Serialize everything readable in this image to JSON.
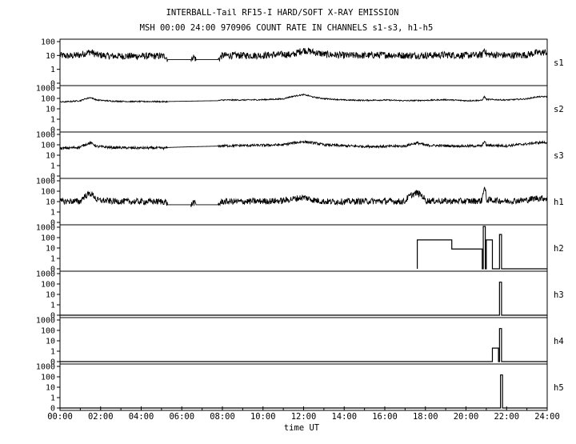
{
  "title": "INTERBALL-Tail RF15-I HARD/SOFT X-RAY EMISSION",
  "subtitle": "MSH 00:00 24:00 970906  COUNT RATE IN CHANNELS s1-s3, h1-h5",
  "xlabel": "time UT",
  "x_ticks": [
    "00:00",
    "02:00",
    "04:00",
    "06:00",
    "08:00",
    "10:00",
    "12:00",
    "14:00",
    "16:00",
    "18:00",
    "20:00",
    "22:00",
    "24:00"
  ],
  "colors": {
    "background": "#ffffff",
    "ink": "#000000"
  },
  "chart_data": {
    "type": "line",
    "title": "INTERBALL-Tail RF15-I HARD/SOFT X-RAY EMISSION",
    "subtitle": "MSH 00:00 24:00 970906  COUNT RATE IN CHANNELS s1-s3, h1-h5",
    "xlabel": "time UT",
    "x_unit": "hours UT",
    "xlim": [
      0,
      24
    ],
    "grid": false,
    "y_scale": "log (count rate)",
    "panels": [
      {
        "name": "s1",
        "y_ticks": [
          "100",
          "10",
          "1",
          "0"
        ],
        "noise": 0.25,
        "points": [
          [
            0,
            10
          ],
          [
            0.5,
            9
          ],
          [
            1,
            11
          ],
          [
            1.5,
            18
          ],
          [
            1.8,
            11
          ],
          [
            2.5,
            9
          ],
          [
            3.5,
            9
          ],
          [
            4.5,
            9
          ],
          [
            5.2,
            9
          ],
          [
            5.3,
            5
          ],
          [
            6.5,
            5
          ],
          [
            6.55,
            9
          ],
          [
            6.7,
            5
          ],
          [
            7.2,
            5
          ],
          [
            7.8,
            5
          ],
          [
            8,
            10
          ],
          [
            9,
            10
          ],
          [
            10,
            10
          ],
          [
            11,
            12
          ],
          [
            11.5,
            11
          ],
          [
            12,
            24
          ],
          [
            12.5,
            17
          ],
          [
            13,
            12
          ],
          [
            14,
            10
          ],
          [
            15,
            10
          ],
          [
            16,
            11
          ],
          [
            17,
            10
          ],
          [
            18,
            10
          ],
          [
            19,
            11
          ],
          [
            20,
            10
          ],
          [
            20.8,
            11
          ],
          [
            20.9,
            30
          ],
          [
            21,
            12
          ],
          [
            22,
            10
          ],
          [
            23,
            11
          ],
          [
            23.5,
            16
          ],
          [
            24,
            17
          ]
        ],
        "quiet": [
          [
            5.3,
            6.45
          ],
          [
            6.7,
            7.8
          ]
        ]
      },
      {
        "name": "s2",
        "y_ticks": [
          "1000",
          "100",
          "10",
          "1",
          "0"
        ],
        "noise": 0.06,
        "points": [
          [
            0,
            45
          ],
          [
            0.5,
            50
          ],
          [
            1,
            60
          ],
          [
            1.5,
            120
          ],
          [
            1.8,
            70
          ],
          [
            2.5,
            55
          ],
          [
            3.5,
            50
          ],
          [
            4.5,
            50
          ],
          [
            5.2,
            48
          ],
          [
            5.3,
            50
          ],
          [
            6.5,
            55
          ],
          [
            7.2,
            58
          ],
          [
            7.8,
            60
          ],
          [
            8,
            70
          ],
          [
            9,
            70
          ],
          [
            10,
            75
          ],
          [
            11,
            90
          ],
          [
            12,
            230
          ],
          [
            12.5,
            130
          ],
          [
            13,
            95
          ],
          [
            14,
            70
          ],
          [
            15,
            65
          ],
          [
            16,
            70
          ],
          [
            17,
            60
          ],
          [
            18,
            65
          ],
          [
            19,
            75
          ],
          [
            20,
            60
          ],
          [
            20.8,
            65
          ],
          [
            20.9,
            150
          ],
          [
            21,
            80
          ],
          [
            22,
            70
          ],
          [
            23,
            90
          ],
          [
            23.5,
            140
          ],
          [
            24,
            150
          ]
        ],
        "quiet": [
          [
            5.3,
            7.8
          ]
        ]
      },
      {
        "name": "s3",
        "y_ticks": [
          "1000",
          "100",
          "10",
          "1",
          "0"
        ],
        "noise": 0.12,
        "points": [
          [
            0,
            45
          ],
          [
            0.5,
            50
          ],
          [
            1,
            60
          ],
          [
            1.5,
            150
          ],
          [
            1.8,
            70
          ],
          [
            2.5,
            55
          ],
          [
            3.5,
            50
          ],
          [
            4.5,
            50
          ],
          [
            5.2,
            48
          ],
          [
            5.3,
            55
          ],
          [
            6.5,
            65
          ],
          [
            7.2,
            70
          ],
          [
            7.8,
            75
          ],
          [
            8,
            80
          ],
          [
            9,
            85
          ],
          [
            10,
            90
          ],
          [
            11,
            100
          ],
          [
            12,
            200
          ],
          [
            12.5,
            150
          ],
          [
            13,
            100
          ],
          [
            14,
            80
          ],
          [
            15,
            70
          ],
          [
            16,
            70
          ],
          [
            17,
            75
          ],
          [
            17.6,
            150
          ],
          [
            18,
            90
          ],
          [
            19,
            80
          ],
          [
            20,
            75
          ],
          [
            20.8,
            80
          ],
          [
            20.9,
            220
          ],
          [
            21,
            90
          ],
          [
            22,
            80
          ],
          [
            23,
            120
          ],
          [
            23.5,
            160
          ],
          [
            24,
            170
          ]
        ],
        "quiet": [
          [
            5.3,
            7.8
          ]
        ]
      },
      {
        "name": "h1",
        "y_ticks": [
          "1000",
          "100",
          "10",
          "1",
          "0"
        ],
        "noise": 0.3,
        "points": [
          [
            0,
            10
          ],
          [
            0.5,
            11
          ],
          [
            1,
            10
          ],
          [
            1.5,
            60
          ],
          [
            1.8,
            14
          ],
          [
            2.5,
            11
          ],
          [
            3.5,
            10
          ],
          [
            4.5,
            10
          ],
          [
            5.2,
            10
          ],
          [
            5.3,
            5
          ],
          [
            6.5,
            5
          ],
          [
            6.55,
            9
          ],
          [
            6.7,
            5
          ],
          [
            7.2,
            5
          ],
          [
            7.8,
            5
          ],
          [
            8,
            10
          ],
          [
            9,
            10
          ],
          [
            10,
            11
          ],
          [
            11,
            12
          ],
          [
            12,
            25
          ],
          [
            12.5,
            14
          ],
          [
            13,
            10
          ],
          [
            14,
            10
          ],
          [
            15,
            11
          ],
          [
            16,
            11
          ],
          [
            17,
            10
          ],
          [
            17.6,
            70
          ],
          [
            18,
            12
          ],
          [
            19,
            11
          ],
          [
            20,
            11
          ],
          [
            20.8,
            12
          ],
          [
            20.9,
            200
          ],
          [
            21,
            15
          ],
          [
            22,
            11
          ],
          [
            23,
            14
          ],
          [
            23.5,
            22
          ],
          [
            24,
            20
          ]
        ],
        "quiet": [
          [
            5.3,
            6.45
          ],
          [
            6.7,
            7.8
          ]
        ]
      },
      {
        "name": "h2",
        "y_ticks": [
          "1000",
          "100",
          "10",
          "1",
          "0"
        ],
        "steps": [
          [
            17.6,
            0
          ],
          [
            17.6,
            60
          ],
          [
            19.3,
            60
          ],
          [
            19.3,
            8
          ],
          [
            20.8,
            8
          ],
          [
            20.8,
            0
          ],
          [
            20.85,
            0
          ],
          [
            20.85,
            1200
          ],
          [
            20.95,
            1200
          ],
          [
            20.95,
            0
          ],
          [
            21.0,
            0
          ],
          [
            21.0,
            60
          ],
          [
            21.3,
            60
          ],
          [
            21.3,
            0
          ],
          [
            21.5,
            0
          ],
          [
            21.5,
            0
          ],
          [
            21.65,
            0
          ],
          [
            21.65,
            200
          ],
          [
            21.75,
            200
          ],
          [
            21.75,
            0
          ],
          [
            24,
            0
          ]
        ]
      },
      {
        "name": "h3",
        "y_ticks": [
          "1000",
          "100",
          "10",
          "1",
          "0"
        ],
        "steps": [
          [
            0,
            0
          ],
          [
            21.65,
            0
          ],
          [
            21.65,
            150
          ],
          [
            21.75,
            150
          ],
          [
            21.75,
            0
          ],
          [
            24,
            0
          ]
        ]
      },
      {
        "name": "h4",
        "y_ticks": [
          "1000",
          "100",
          "10",
          "1",
          "0"
        ],
        "steps": [
          [
            0,
            0
          ],
          [
            21.3,
            0
          ],
          [
            21.3,
            2
          ],
          [
            21.6,
            2
          ],
          [
            21.6,
            0
          ],
          [
            21.65,
            0
          ],
          [
            21.65,
            150
          ],
          [
            21.75,
            150
          ],
          [
            21.75,
            0
          ],
          [
            24,
            0
          ]
        ]
      },
      {
        "name": "h5",
        "y_ticks": [
          "1000",
          "100",
          "10",
          "1",
          "0"
        ],
        "steps": [
          [
            0,
            0
          ],
          [
            21.7,
            0
          ],
          [
            21.7,
            150
          ],
          [
            21.8,
            150
          ],
          [
            21.8,
            0
          ],
          [
            24,
            0
          ]
        ]
      }
    ]
  }
}
